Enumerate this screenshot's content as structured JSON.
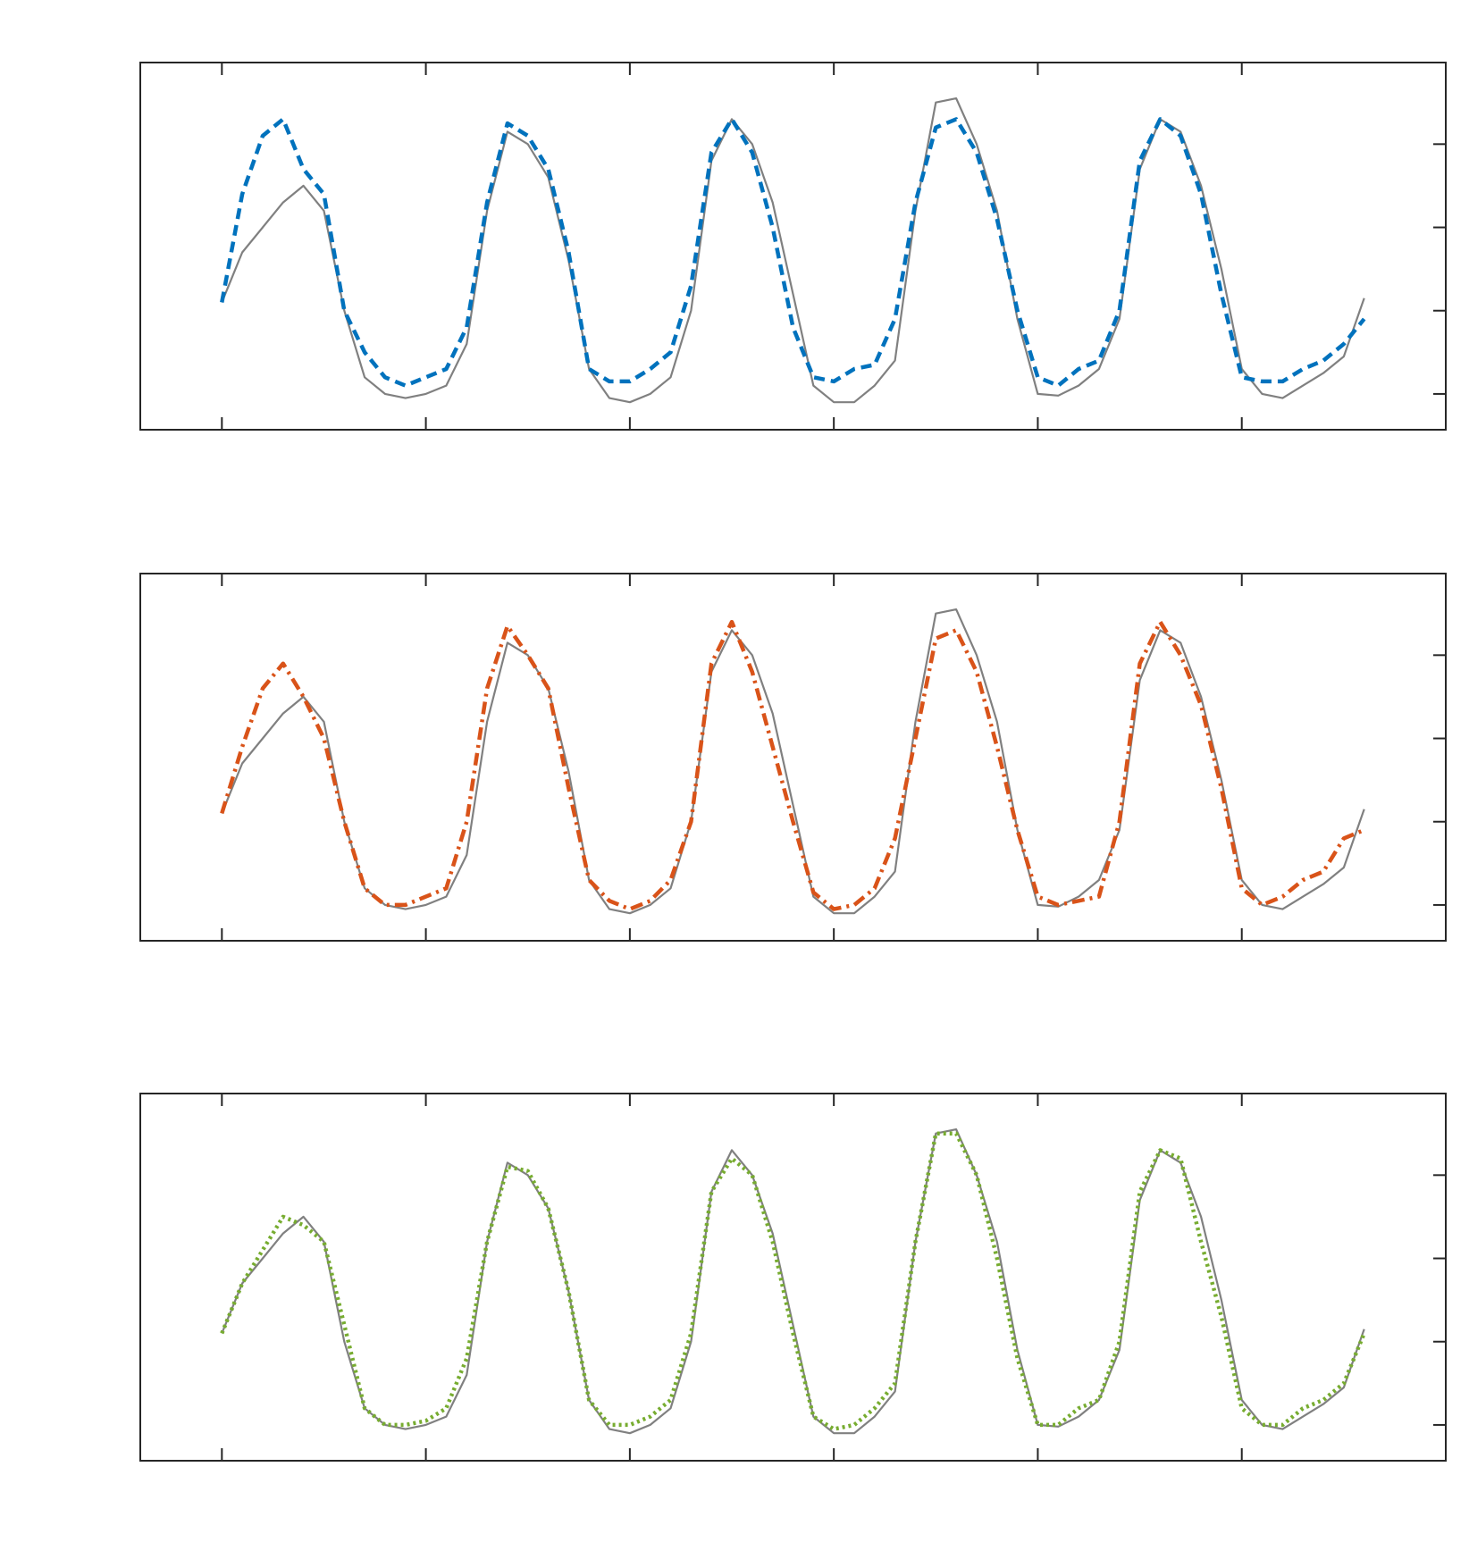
{
  "chart_data": [
    {
      "type": "line",
      "x": [
        0,
        0.1,
        0.2,
        0.3,
        0.4,
        0.5,
        0.6,
        0.7,
        0.8,
        0.9,
        1.0,
        1.1,
        1.2,
        1.3,
        1.4,
        1.5,
        1.6,
        1.7,
        1.8,
        1.9,
        2.0,
        2.1,
        2.2,
        2.3,
        2.4,
        2.5,
        2.6,
        2.7,
        2.8,
        2.9,
        3.0,
        3.1,
        3.2,
        3.3,
        3.4,
        3.5,
        3.6,
        3.7,
        3.8,
        3.9,
        4.0,
        4.1,
        4.2,
        4.3,
        4.4,
        4.5,
        4.6,
        4.7,
        4.8,
        4.9,
        5.0,
        5.1,
        5.2,
        5.3,
        5.4,
        5.5,
        5.6
      ],
      "series": [
        {
          "color": "#808080",
          "linestyle": "solid",
          "values": [
            1.1,
            1.7,
            2.0,
            2.3,
            2.5,
            2.2,
            1.0,
            0.2,
            0.0,
            -0.05,
            0.0,
            0.1,
            0.6,
            2.2,
            3.15,
            3.0,
            2.6,
            1.6,
            0.3,
            -0.05,
            -0.1,
            0.0,
            0.2,
            1.0,
            2.8,
            3.3,
            3.0,
            2.3,
            1.2,
            0.1,
            -0.1,
            -0.1,
            0.1,
            0.4,
            2.2,
            3.5,
            3.55,
            3.0,
            2.2,
            0.9,
            0.0,
            -0.02,
            0.1,
            0.3,
            0.9,
            2.7,
            3.3,
            3.15,
            2.5,
            1.5,
            0.3,
            0.0,
            -0.05,
            0.1,
            0.25,
            0.45,
            1.15
          ]
        },
        {
          "color": "#0072bd",
          "linestyle": "dashed",
          "values": [
            1.1,
            2.4,
            3.1,
            3.3,
            2.7,
            2.4,
            1.0,
            0.5,
            0.2,
            0.1,
            0.2,
            0.3,
            0.8,
            2.3,
            3.25,
            3.1,
            2.7,
            1.7,
            0.3,
            0.15,
            0.15,
            0.3,
            0.5,
            1.3,
            2.9,
            3.3,
            2.9,
            2.0,
            0.8,
            0.2,
            0.15,
            0.3,
            0.35,
            0.9,
            2.3,
            3.2,
            3.3,
            2.9,
            2.1,
            1.0,
            0.2,
            0.1,
            0.3,
            0.4,
            1.0,
            2.8,
            3.3,
            3.1,
            2.4,
            1.2,
            0.2,
            0.15,
            0.15,
            0.3,
            0.4,
            0.6,
            0.9
          ]
        }
      ],
      "xlim": [
        -0.4,
        6.0
      ],
      "xticks": [
        0,
        1,
        2,
        3,
        4,
        5
      ],
      "ylim": [
        -0.43,
        3.98
      ],
      "yticks": [
        0,
        1,
        2,
        3
      ]
    },
    {
      "type": "line",
      "x": [
        0,
        0.1,
        0.2,
        0.3,
        0.4,
        0.5,
        0.6,
        0.7,
        0.8,
        0.9,
        1.0,
        1.1,
        1.2,
        1.3,
        1.4,
        1.5,
        1.6,
        1.7,
        1.8,
        1.9,
        2.0,
        2.1,
        2.2,
        2.3,
        2.4,
        2.5,
        2.6,
        2.7,
        2.8,
        2.9,
        3.0,
        3.1,
        3.2,
        3.3,
        3.4,
        3.5,
        3.6,
        3.7,
        3.8,
        3.9,
        4.0,
        4.1,
        4.2,
        4.3,
        4.4,
        4.5,
        4.6,
        4.7,
        4.8,
        4.9,
        5.0,
        5.1,
        5.2,
        5.3,
        5.4,
        5.5,
        5.6
      ],
      "series": [
        {
          "color": "#808080",
          "linestyle": "solid",
          "values": [
            1.1,
            1.7,
            2.0,
            2.3,
            2.5,
            2.2,
            1.0,
            0.2,
            0.0,
            -0.05,
            0.0,
            0.1,
            0.6,
            2.2,
            3.15,
            3.0,
            2.6,
            1.6,
            0.3,
            -0.05,
            -0.1,
            0.0,
            0.2,
            1.0,
            2.8,
            3.3,
            3.0,
            2.3,
            1.2,
            0.1,
            -0.1,
            -0.1,
            0.1,
            0.4,
            2.2,
            3.5,
            3.55,
            3.0,
            2.2,
            0.9,
            0.0,
            -0.02,
            0.1,
            0.3,
            0.9,
            2.7,
            3.3,
            3.15,
            2.5,
            1.5,
            0.3,
            0.0,
            -0.05,
            0.1,
            0.25,
            0.45,
            1.15
          ]
        },
        {
          "color": "#d95319",
          "linestyle": "dashdot",
          "values": [
            1.1,
            1.9,
            2.6,
            2.9,
            2.5,
            2.0,
            1.0,
            0.2,
            0.0,
            0.0,
            0.1,
            0.2,
            1.0,
            2.6,
            3.35,
            3.0,
            2.6,
            1.4,
            0.3,
            0.05,
            -0.05,
            0.05,
            0.3,
            1.0,
            2.9,
            3.4,
            2.8,
            1.9,
            1.0,
            0.15,
            -0.05,
            0.0,
            0.2,
            0.8,
            2.0,
            3.2,
            3.3,
            2.8,
            1.9,
            0.9,
            0.1,
            0.0,
            0.05,
            0.1,
            1.0,
            2.9,
            3.4,
            3.0,
            2.4,
            1.4,
            0.2,
            0.0,
            0.1,
            0.3,
            0.4,
            0.8,
            0.9
          ]
        }
      ],
      "xlim": [
        -0.4,
        6.0
      ],
      "xticks": [
        0,
        1,
        2,
        3,
        4,
        5
      ],
      "ylim": [
        -0.43,
        3.98
      ],
      "yticks": [
        0,
        1,
        2,
        3
      ]
    },
    {
      "type": "line",
      "x": [
        0,
        0.1,
        0.2,
        0.3,
        0.4,
        0.5,
        0.6,
        0.7,
        0.8,
        0.9,
        1.0,
        1.1,
        1.2,
        1.3,
        1.4,
        1.5,
        1.6,
        1.7,
        1.8,
        1.9,
        2.0,
        2.1,
        2.2,
        2.3,
        2.4,
        2.5,
        2.6,
        2.7,
        2.8,
        2.9,
        3.0,
        3.1,
        3.2,
        3.3,
        3.4,
        3.5,
        3.6,
        3.7,
        3.8,
        3.9,
        4.0,
        4.1,
        4.2,
        4.3,
        4.4,
        4.5,
        4.6,
        4.7,
        4.8,
        4.9,
        5.0,
        5.1,
        5.2,
        5.3,
        5.4,
        5.5,
        5.6
      ],
      "series": [
        {
          "color": "#808080",
          "linestyle": "solid",
          "values": [
            1.1,
            1.7,
            2.0,
            2.3,
            2.5,
            2.2,
            1.0,
            0.2,
            0.0,
            -0.05,
            0.0,
            0.1,
            0.6,
            2.2,
            3.15,
            3.0,
            2.6,
            1.6,
            0.3,
            -0.05,
            -0.1,
            0.0,
            0.2,
            1.0,
            2.8,
            3.3,
            3.0,
            2.3,
            1.2,
            0.1,
            -0.1,
            -0.1,
            0.1,
            0.4,
            2.2,
            3.5,
            3.55,
            3.0,
            2.2,
            0.9,
            0.0,
            -0.02,
            0.1,
            0.3,
            0.9,
            2.7,
            3.3,
            3.15,
            2.5,
            1.5,
            0.3,
            0.0,
            -0.05,
            0.1,
            0.25,
            0.45,
            1.15
          ]
        },
        {
          "color": "#77ac30",
          "linestyle": "dotted",
          "values": [
            1.1,
            1.7,
            2.1,
            2.5,
            2.4,
            2.2,
            1.2,
            0.2,
            0.0,
            0.0,
            0.05,
            0.2,
            0.8,
            2.2,
            3.1,
            3.05,
            2.6,
            1.6,
            0.3,
            0.0,
            0.0,
            0.1,
            0.3,
            1.1,
            2.8,
            3.2,
            3.0,
            2.2,
            1.1,
            0.1,
            -0.05,
            0.0,
            0.2,
            0.5,
            2.2,
            3.5,
            3.5,
            3.0,
            2.0,
            0.8,
            0.0,
            0.0,
            0.2,
            0.3,
            1.0,
            2.8,
            3.3,
            3.2,
            2.2,
            1.3,
            0.2,
            0.0,
            0.0,
            0.2,
            0.3,
            0.5,
            1.1
          ]
        }
      ],
      "xlim": [
        -0.4,
        6.0
      ],
      "xticks": [
        0,
        1,
        2,
        3,
        4,
        5
      ],
      "ylim": [
        -0.43,
        3.98
      ],
      "yticks": [
        0,
        1,
        2,
        3
      ]
    }
  ]
}
